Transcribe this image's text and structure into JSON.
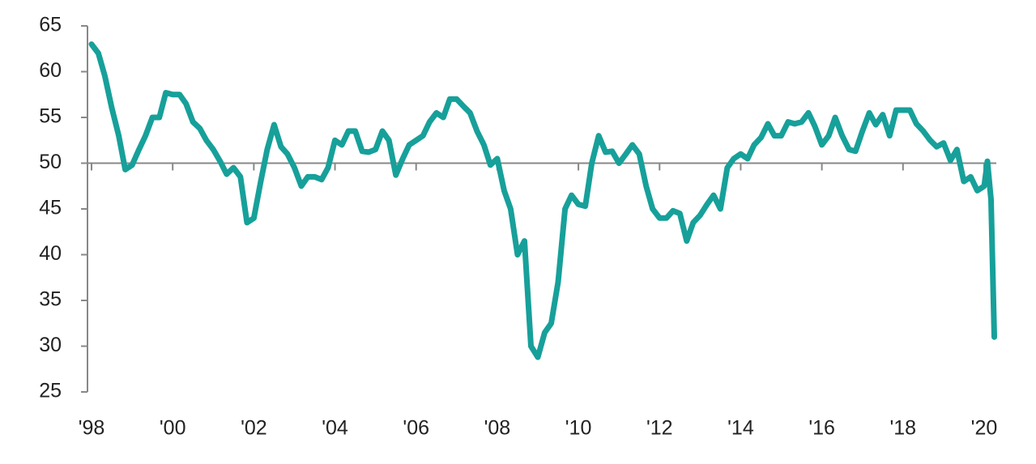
{
  "chart_data": {
    "type": "line",
    "x": [
      1998,
      1998.17,
      1998.33,
      1998.5,
      1998.67,
      1998.83,
      1999,
      1999.17,
      1999.33,
      1999.5,
      1999.67,
      1999.83,
      2000,
      2000.17,
      2000.33,
      2000.5,
      2000.67,
      2000.83,
      2001,
      2001.17,
      2001.33,
      2001.5,
      2001.67,
      2001.83,
      2002,
      2002.17,
      2002.33,
      2002.5,
      2002.67,
      2002.83,
      2003,
      2003.17,
      2003.33,
      2003.5,
      2003.67,
      2003.83,
      2004,
      2004.17,
      2004.33,
      2004.5,
      2004.67,
      2004.83,
      2005,
      2005.17,
      2005.33,
      2005.5,
      2005.67,
      2005.83,
      2006,
      2006.17,
      2006.33,
      2006.5,
      2006.67,
      2006.83,
      2007,
      2007.17,
      2007.33,
      2007.5,
      2007.67,
      2007.83,
      2008,
      2008.17,
      2008.33,
      2008.5,
      2008.67,
      2008.83,
      2009,
      2009.17,
      2009.33,
      2009.5,
      2009.67,
      2009.83,
      2010,
      2010.17,
      2010.33,
      2010.5,
      2010.67,
      2010.83,
      2011,
      2011.17,
      2011.33,
      2011.5,
      2011.67,
      2011.83,
      2012,
      2012.17,
      2012.33,
      2012.5,
      2012.67,
      2012.83,
      2013,
      2013.17,
      2013.33,
      2013.5,
      2013.67,
      2013.83,
      2014,
      2014.17,
      2014.33,
      2014.5,
      2014.67,
      2014.83,
      2015,
      2015.17,
      2015.33,
      2015.5,
      2015.67,
      2015.83,
      2016,
      2016.17,
      2016.33,
      2016.5,
      2016.67,
      2016.83,
      2017,
      2017.17,
      2017.33,
      2017.5,
      2017.67,
      2017.83,
      2018,
      2018.17,
      2018.33,
      2018.5,
      2018.67,
      2018.83,
      2019,
      2019.17,
      2019.33,
      2019.5,
      2019.67,
      2019.83,
      2020,
      2020.08,
      2020.17,
      2020.25
    ],
    "series": [
      {
        "color": "#17a09a",
        "values": [
          63,
          62,
          59.5,
          56,
          53,
          49.3,
          49.8,
          51.5,
          53,
          55,
          55,
          57.7,
          57.5,
          57.5,
          56.5,
          54.5,
          53.8,
          52.5,
          51.5,
          50.2,
          48.8,
          49.5,
          48.5,
          43.5,
          44,
          48,
          51.5,
          54.2,
          51.8,
          51,
          49.5,
          47.5,
          48.5,
          48.5,
          48.2,
          49.5,
          52.5,
          52,
          53.5,
          53.5,
          51.3,
          51.2,
          51.5,
          53.5,
          52.5,
          48.7,
          50.5,
          52,
          52.5,
          53,
          54.5,
          55.5,
          55,
          57,
          57,
          56.2,
          55.5,
          53.5,
          52,
          49.8,
          50.5,
          47,
          45,
          40,
          41.5,
          30,
          28.8,
          31.5,
          32.5,
          37,
          45,
          46.5,
          45.5,
          45.3,
          50,
          53,
          51.2,
          51.3,
          50,
          51,
          52,
          51,
          47.5,
          45,
          44,
          44,
          44.8,
          44.5,
          41.5,
          43.5,
          44.3,
          45.5,
          46.5,
          45,
          49.5,
          50.5,
          51,
          50.5,
          52,
          52.8,
          54.3,
          53,
          53,
          54.5,
          54.3,
          54.5,
          55.5,
          54,
          52,
          53,
          55,
          53,
          51.5,
          51.3,
          53.5,
          55.5,
          54.2,
          55.3,
          53,
          55.8,
          55.8,
          55.8,
          54.3,
          53.5,
          52.5,
          51.8,
          52.2,
          50.3,
          51.5,
          48,
          48.5,
          47,
          47.5,
          50.2,
          46,
          31
        ]
      }
    ],
    "reference_line": 50,
    "xlim": [
      1997.9,
      2020.3
    ],
    "xticks": [
      {
        "value": 1998,
        "label": "'98"
      },
      {
        "value": 2000,
        "label": "'00"
      },
      {
        "value": 2002,
        "label": "'02"
      },
      {
        "value": 2004,
        "label": "'04"
      },
      {
        "value": 2006,
        "label": "'06"
      },
      {
        "value": 2008,
        "label": "'08"
      },
      {
        "value": 2010,
        "label": "'10"
      },
      {
        "value": 2012,
        "label": "'12"
      },
      {
        "value": 2014,
        "label": "'14"
      },
      {
        "value": 2016,
        "label": "'16"
      },
      {
        "value": 2018,
        "label": "'18"
      },
      {
        "value": 2020,
        "label": "'20"
      }
    ],
    "ylim": [
      25,
      65
    ],
    "yticks": [
      25,
      30,
      35,
      40,
      45,
      50,
      55,
      60,
      65
    ]
  }
}
